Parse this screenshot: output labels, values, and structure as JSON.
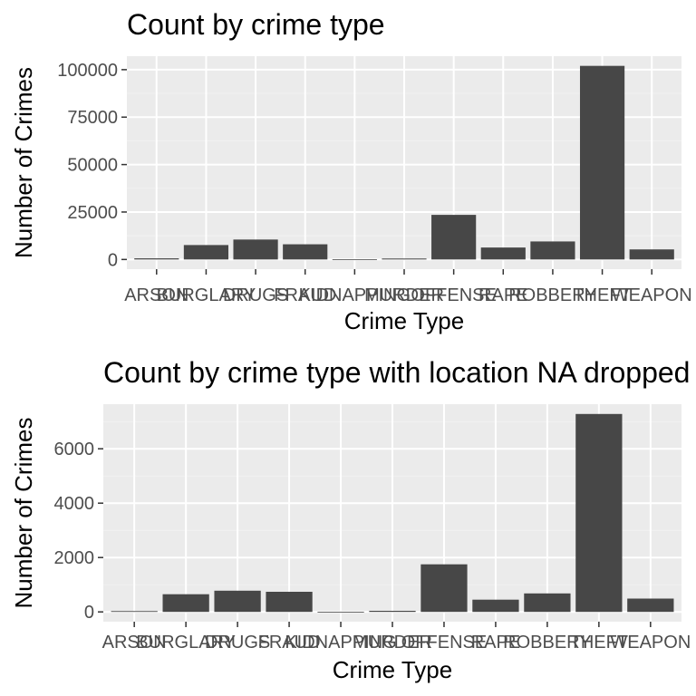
{
  "chart_data": [
    {
      "type": "bar",
      "title": "Count by crime type",
      "xlabel": "Crime Type",
      "ylabel": "Number of Crimes",
      "categories": [
        "ARSON",
        "BURGLARY",
        "DRUGS",
        "FRAUD",
        "KIDNAPPING",
        "MURDER",
        "OFFENSE",
        "RAPE",
        "ROBBERY",
        "THEFT",
        "WEAPON"
      ],
      "values": [
        600,
        7600,
        10500,
        8000,
        50,
        500,
        23500,
        6300,
        9500,
        102000,
        5300
      ],
      "yticks": [
        0,
        25000,
        50000,
        75000,
        100000
      ],
      "ylim": [
        -5100,
        107100
      ],
      "grid": true,
      "bar_color": "#474747",
      "panel_color": "#ebebeb"
    },
    {
      "type": "bar",
      "title": "Count by crime type with location NA dropped",
      "xlabel": "Crime Type",
      "ylabel": "Number of Crimes",
      "categories": [
        "ARSON",
        "BURGLARY",
        "DRUGS",
        "FRAUD",
        "KIDNAPPING",
        "MURDER",
        "OFFENSE",
        "RAPE",
        "ROBBERY",
        "THEFT",
        "WEAPON"
      ],
      "values": [
        30,
        650,
        780,
        740,
        5,
        40,
        1750,
        450,
        680,
        7280,
        490
      ],
      "yticks": [
        0,
        2000,
        4000,
        6000
      ],
      "ylim": [
        -360,
        7640
      ],
      "grid": true,
      "bar_color": "#474747",
      "panel_color": "#ebebeb"
    }
  ]
}
